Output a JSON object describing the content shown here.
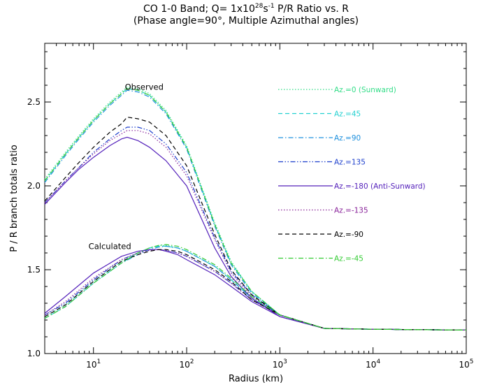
{
  "chart_data": {
    "type": "line",
    "title_line1_prefix": "CO 1-0 Band; Q= 1x10",
    "title_line1_exp": "28",
    "title_line1_mid": "s",
    "title_line1_exp2": "-1",
    "title_line1_suffix": " P/R Ratio vs. R",
    "title_line2": "(Phase angle=90°,  Multiple Azimuthal angles)",
    "xlabel": "Radius (km)",
    "ylabel": "P / R branch totals ratio",
    "xscale": "log",
    "xlim": [
      3,
      100000
    ],
    "ylim": [
      1.0,
      2.85
    ],
    "x_ticks": [
      {
        "base": "10",
        "exp": "1",
        "value": 10
      },
      {
        "base": "10",
        "exp": "2",
        "value": 100
      },
      {
        "base": "10",
        "exp": "3",
        "value": 1000
      },
      {
        "base": "10",
        "exp": "4",
        "value": 10000
      },
      {
        "base": "10",
        "exp": "5",
        "value": 100000
      }
    ],
    "y_ticks": [
      {
        "label": "1.0",
        "value": 1.0
      },
      {
        "label": "1.5",
        "value": 1.5
      },
      {
        "label": "2.0",
        "value": 2.0
      },
      {
        "label": "2.5",
        "value": 2.5
      }
    ],
    "annotations": [
      {
        "text": "Observed",
        "x": 35,
        "y": 2.59
      },
      {
        "text": "Calculated",
        "x": 15,
        "y": 1.64
      }
    ],
    "legend_position": "top-right",
    "series": [
      {
        "name": "Az.=0 (Sunward)",
        "color": "#33dd88",
        "dash": "dotted",
        "observed": {
          "x": [
            3,
            5,
            7,
            10,
            15,
            20,
            23,
            30,
            40,
            60,
            100,
            200,
            300,
            500,
            1000,
            3000,
            10000,
            100000
          ],
          "y": [
            2.04,
            2.2,
            2.3,
            2.4,
            2.5,
            2.56,
            2.59,
            2.58,
            2.55,
            2.45,
            2.24,
            1.78,
            1.55,
            1.37,
            1.23,
            1.15,
            1.145,
            1.14
          ]
        },
        "calculated": {
          "x": [
            3,
            5,
            10,
            20,
            30,
            40,
            50,
            60,
            80,
            100,
            200,
            300,
            500,
            1000,
            3000,
            10000,
            100000
          ],
          "y": [
            1.22,
            1.29,
            1.43,
            1.55,
            1.6,
            1.63,
            1.645,
            1.645,
            1.63,
            1.61,
            1.52,
            1.44,
            1.33,
            1.23,
            1.15,
            1.145,
            1.14
          ]
        }
      },
      {
        "name": "Az.=45",
        "color": "#22d0d0",
        "dash": "dashed",
        "observed": {
          "x": [
            3,
            5,
            7,
            10,
            15,
            20,
            23,
            30,
            40,
            60,
            100,
            200,
            300,
            500,
            1000,
            3000,
            10000,
            100000
          ],
          "y": [
            2.03,
            2.19,
            2.29,
            2.39,
            2.49,
            2.55,
            2.58,
            2.57,
            2.54,
            2.44,
            2.23,
            1.77,
            1.54,
            1.37,
            1.23,
            1.15,
            1.145,
            1.14
          ]
        },
        "calculated": {
          "x": [
            3,
            5,
            10,
            20,
            30,
            40,
            50,
            60,
            80,
            100,
            200,
            300,
            500,
            1000,
            3000,
            10000,
            100000
          ],
          "y": [
            1.21,
            1.28,
            1.42,
            1.54,
            1.6,
            1.63,
            1.64,
            1.64,
            1.63,
            1.61,
            1.52,
            1.44,
            1.33,
            1.23,
            1.15,
            1.145,
            1.14
          ]
        }
      },
      {
        "name": "Az.=90",
        "color": "#1e90dd",
        "dash": "dashdot",
        "observed": {
          "x": [
            3,
            5,
            7,
            10,
            15,
            20,
            23,
            30,
            40,
            60,
            100,
            200,
            300,
            500,
            1000,
            3000,
            10000,
            100000
          ],
          "y": [
            2.02,
            2.18,
            2.28,
            2.38,
            2.48,
            2.54,
            2.57,
            2.56,
            2.53,
            2.43,
            2.22,
            1.76,
            1.53,
            1.36,
            1.23,
            1.15,
            1.145,
            1.14
          ]
        },
        "calculated": {
          "x": [
            3,
            5,
            10,
            20,
            30,
            40,
            50,
            60,
            80,
            100,
            200,
            300,
            500,
            1000,
            3000,
            10000,
            100000
          ],
          "y": [
            1.21,
            1.28,
            1.42,
            1.54,
            1.59,
            1.62,
            1.635,
            1.64,
            1.63,
            1.61,
            1.52,
            1.44,
            1.33,
            1.23,
            1.15,
            1.145,
            1.14
          ]
        }
      },
      {
        "name": "Az.=135",
        "color": "#1d3fcc",
        "dash": "dashdotdot",
        "observed": {
          "x": [
            3,
            5,
            7,
            10,
            15,
            20,
            23,
            30,
            40,
            60,
            100,
            200,
            300,
            500,
            1000,
            3000,
            10000,
            100000
          ],
          "y": [
            1.9,
            2.03,
            2.11,
            2.2,
            2.28,
            2.33,
            2.35,
            2.35,
            2.33,
            2.25,
            2.08,
            1.69,
            1.49,
            1.35,
            1.23,
            1.15,
            1.145,
            1.14
          ]
        },
        "calculated": {
          "x": [
            3,
            5,
            10,
            20,
            30,
            40,
            50,
            60,
            80,
            100,
            200,
            300,
            500,
            1000,
            3000,
            10000,
            100000
          ],
          "y": [
            1.23,
            1.3,
            1.44,
            1.56,
            1.6,
            1.62,
            1.62,
            1.615,
            1.6,
            1.58,
            1.49,
            1.42,
            1.32,
            1.23,
            1.15,
            1.145,
            1.14
          ]
        }
      },
      {
        "name": "Az.=-180 (Anti-Sunward)",
        "color": "#5522bb",
        "dash": "solid",
        "observed": {
          "x": [
            3,
            5,
            7,
            10,
            15,
            20,
            23,
            30,
            40,
            60,
            100,
            200,
            300,
            500,
            1000,
            3000,
            10000,
            100000
          ],
          "y": [
            1.89,
            2.02,
            2.1,
            2.17,
            2.24,
            2.28,
            2.29,
            2.27,
            2.23,
            2.15,
            2.0,
            1.63,
            1.46,
            1.33,
            1.22,
            1.15,
            1.145,
            1.14
          ]
        },
        "calculated": {
          "x": [
            3,
            5,
            10,
            20,
            30,
            40,
            50,
            60,
            80,
            100,
            200,
            300,
            500,
            1000,
            3000,
            10000,
            100000
          ],
          "y": [
            1.24,
            1.34,
            1.48,
            1.58,
            1.61,
            1.62,
            1.62,
            1.61,
            1.59,
            1.56,
            1.47,
            1.4,
            1.31,
            1.22,
            1.15,
            1.145,
            1.14
          ]
        }
      },
      {
        "name": "Az.=-135",
        "color": "#882299",
        "dash": "dotted",
        "observed": {
          "x": [
            3,
            5,
            7,
            10,
            15,
            20,
            23,
            30,
            40,
            60,
            100,
            200,
            300,
            500,
            1000,
            3000,
            10000,
            100000
          ],
          "y": [
            1.9,
            2.03,
            2.11,
            2.19,
            2.27,
            2.31,
            2.33,
            2.33,
            2.31,
            2.23,
            2.06,
            1.68,
            1.48,
            1.34,
            1.23,
            1.15,
            1.145,
            1.14
          ]
        },
        "calculated": {
          "x": [
            3,
            5,
            10,
            20,
            30,
            40,
            50,
            60,
            80,
            100,
            200,
            300,
            500,
            1000,
            3000,
            10000,
            100000
          ],
          "y": [
            1.23,
            1.31,
            1.45,
            1.56,
            1.6,
            1.615,
            1.62,
            1.615,
            1.6,
            1.58,
            1.49,
            1.42,
            1.32,
            1.23,
            1.15,
            1.145,
            1.14
          ]
        }
      },
      {
        "name": "Az.=-90",
        "color": "#000000",
        "dash": "dashed",
        "observed": {
          "x": [
            3,
            5,
            7,
            10,
            15,
            20,
            23,
            30,
            40,
            60,
            100,
            200,
            300,
            500,
            1000,
            3000,
            10000,
            100000
          ],
          "y": [
            1.91,
            2.05,
            2.14,
            2.23,
            2.32,
            2.37,
            2.41,
            2.4,
            2.38,
            2.3,
            2.12,
            1.71,
            1.5,
            1.35,
            1.23,
            1.15,
            1.145,
            1.14
          ]
        },
        "calculated": {
          "x": [
            3,
            5,
            10,
            20,
            30,
            40,
            50,
            60,
            80,
            100,
            200,
            300,
            500,
            1000,
            3000,
            10000,
            100000
          ],
          "y": [
            1.22,
            1.29,
            1.43,
            1.55,
            1.59,
            1.61,
            1.62,
            1.62,
            1.61,
            1.59,
            1.5,
            1.43,
            1.32,
            1.23,
            1.15,
            1.145,
            1.14
          ]
        }
      },
      {
        "name": "Az.=-45",
        "color": "#33cc33",
        "dash": "dashdot",
        "observed": {
          "x": [
            3,
            5,
            7,
            10,
            15,
            20,
            23,
            30,
            40,
            60,
            100,
            200,
            300,
            500,
            1000,
            3000,
            10000,
            100000
          ],
          "y": [
            2.03,
            2.19,
            2.29,
            2.39,
            2.49,
            2.55,
            2.58,
            2.57,
            2.54,
            2.44,
            2.23,
            1.77,
            1.54,
            1.37,
            1.23,
            1.15,
            1.145,
            1.14
          ]
        },
        "calculated": {
          "x": [
            3,
            5,
            10,
            20,
            30,
            40,
            50,
            60,
            80,
            100,
            200,
            300,
            500,
            1000,
            3000,
            10000,
            100000
          ],
          "y": [
            1.21,
            1.28,
            1.42,
            1.54,
            1.6,
            1.63,
            1.645,
            1.65,
            1.64,
            1.62,
            1.53,
            1.45,
            1.34,
            1.23,
            1.15,
            1.145,
            1.14
          ]
        }
      }
    ]
  }
}
